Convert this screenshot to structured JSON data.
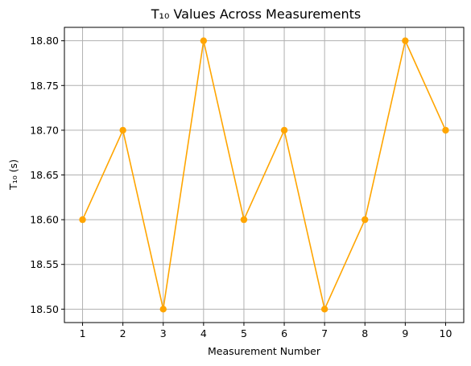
{
  "chart_data": {
    "type": "line",
    "title": "T₁₀ Values Across Measurements",
    "xlabel": "Measurement Number",
    "ylabel": "T₁₀ (s)",
    "x": [
      1,
      2,
      3,
      4,
      5,
      6,
      7,
      8,
      9,
      10
    ],
    "x_ticks": [
      "1",
      "2",
      "3",
      "4",
      "5",
      "6",
      "7",
      "8",
      "9",
      "10"
    ],
    "y_ticks": [
      "18.50",
      "18.55",
      "18.60",
      "18.65",
      "18.70",
      "18.75",
      "18.80"
    ],
    "y_tick_values": [
      18.5,
      18.55,
      18.6,
      18.65,
      18.7,
      18.75,
      18.8
    ],
    "xlim": [
      0.55,
      10.45
    ],
    "ylim": [
      18.485,
      18.815
    ],
    "grid": true,
    "series": [
      {
        "values": [
          18.6,
          18.7,
          18.5,
          18.8,
          18.6,
          18.7,
          18.5,
          18.6,
          18.8,
          18.7
        ],
        "color": "#FFA500",
        "marker": "circle"
      }
    ]
  }
}
